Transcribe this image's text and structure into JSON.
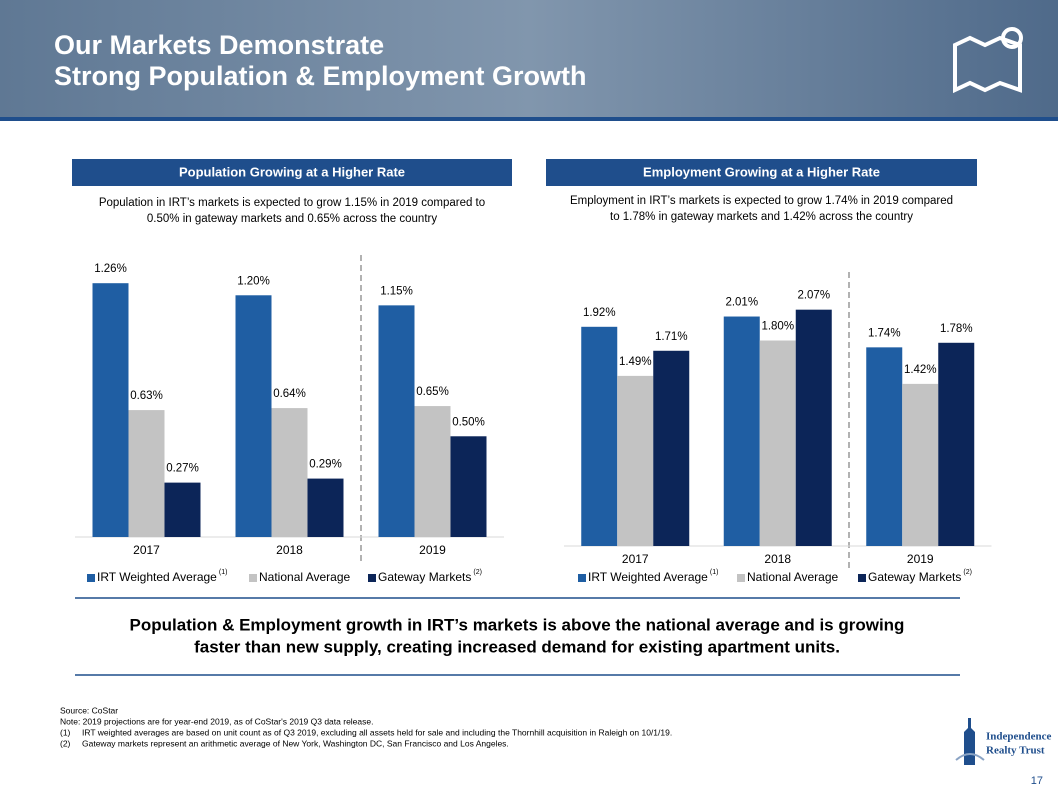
{
  "title": [
    "Our Markets Demonstrate",
    "Strong Population & Employment Growth"
  ],
  "chart_data": [
    {
      "type": "bar",
      "title": "Population Growing at a Higher Rate",
      "subtitle": [
        "Population in IRT’s markets is expected to grow 1.15% in 2019 compared to",
        "0.50% in gateway markets and 0.65% across the country"
      ],
      "categories": [
        "2017",
        "2018",
        "2019"
      ],
      "ylim": [
        0,
        1.4
      ],
      "series": [
        {
          "name": "IRT Weighted Average",
          "note_ref": "(1)",
          "color": "#1f5ea3",
          "values": [
            1.26,
            1.2,
            1.15
          ],
          "value_labels": [
            "1.26%",
            "1.20%",
            "1.15%"
          ]
        },
        {
          "name": "National Average",
          "color": "#c3c3c3",
          "values": [
            0.63,
            0.64,
            0.65
          ],
          "value_labels": [
            "0.63%",
            "0.64%",
            "0.65%"
          ]
        },
        {
          "name": "Gateway Markets",
          "note_ref": "(2)",
          "color": "#0c2558",
          "values": [
            0.27,
            0.29,
            0.5
          ],
          "value_labels": [
            "0.27%",
            "0.29%",
            "0.50%"
          ]
        }
      ]
    },
    {
      "type": "bar",
      "title": "Employment Growing at a Higher Rate",
      "subtitle": [
        "Employment in IRT’s markets is expected to grow 1.74% in 2019 compared",
        "to 1.78% in gateway markets and 1.42% across the country"
      ],
      "categories": [
        "2017",
        "2018",
        "2019"
      ],
      "ylim": [
        0,
        2.4
      ],
      "series": [
        {
          "name": "IRT Weighted Average",
          "note_ref": "(1)",
          "color": "#1f5ea3",
          "values": [
            1.92,
            2.01,
            1.74
          ],
          "value_labels": [
            "1.92%",
            "2.01%",
            "1.74%"
          ]
        },
        {
          "name": "National Average",
          "color": "#c3c3c3",
          "values": [
            1.49,
            1.8,
            1.42
          ],
          "value_labels": [
            "1.49%",
            "1.80%",
            "1.42%"
          ]
        },
        {
          "name": "Gateway Markets",
          "note_ref": "(2)",
          "color": "#0c2558",
          "values": [
            1.71,
            2.07,
            1.78
          ],
          "value_labels": [
            "1.71%",
            "2.07%",
            "1.78%"
          ]
        }
      ]
    }
  ],
  "callout": [
    "Population & Employment growth in IRT’s markets is above the national average and is growing",
    "faster than new supply, creating increased demand for existing apartment units."
  ],
  "footnotes": {
    "source": "Source: CoStar",
    "note": "Note: 2019 projections are for year-end 2019, as of CoStar's 2019 Q3 data release.",
    "items": [
      {
        "marker": "(1)",
        "text": "IRT weighted averages are based on unit count as of Q3 2019, excluding all assets held for sale and including the Thornhill acquisition in Raleigh on 10/1/19."
      },
      {
        "marker": "(2)",
        "text": "Gateway markets represent an arithmetic average of New York, Washington DC, San Francisco and Los Angeles."
      }
    ]
  },
  "logo": [
    "Independence",
    "Realty Trust"
  ],
  "page_number": "17"
}
